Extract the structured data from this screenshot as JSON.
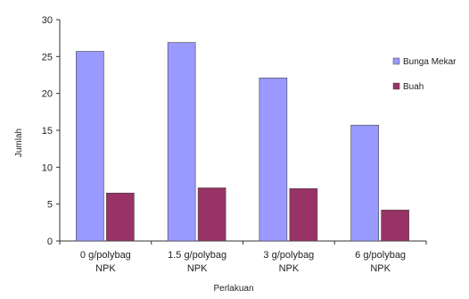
{
  "chart_data": {
    "type": "bar",
    "title": "",
    "xlabel": "Perlakuan",
    "ylabel": "Jumlah",
    "ylim": [
      0,
      30
    ],
    "yticks": [
      0,
      5,
      10,
      15,
      20,
      25,
      30
    ],
    "grid": false,
    "legend_position": "right",
    "categories": [
      [
        "0 g/polybag",
        "NPK"
      ],
      [
        "1.5 g/polybag",
        "NPK"
      ],
      [
        "3 g/polybag",
        "NPK"
      ],
      [
        "6 g/polybag",
        "NPK"
      ]
    ],
    "series": [
      {
        "name": "Bunga Mekar",
        "color": "#9999ff",
        "values": [
          25.7,
          26.9,
          22.1,
          15.7
        ]
      },
      {
        "name": "Buah",
        "color": "#993366",
        "values": [
          6.5,
          7.2,
          7.1,
          4.2
        ]
      }
    ]
  }
}
